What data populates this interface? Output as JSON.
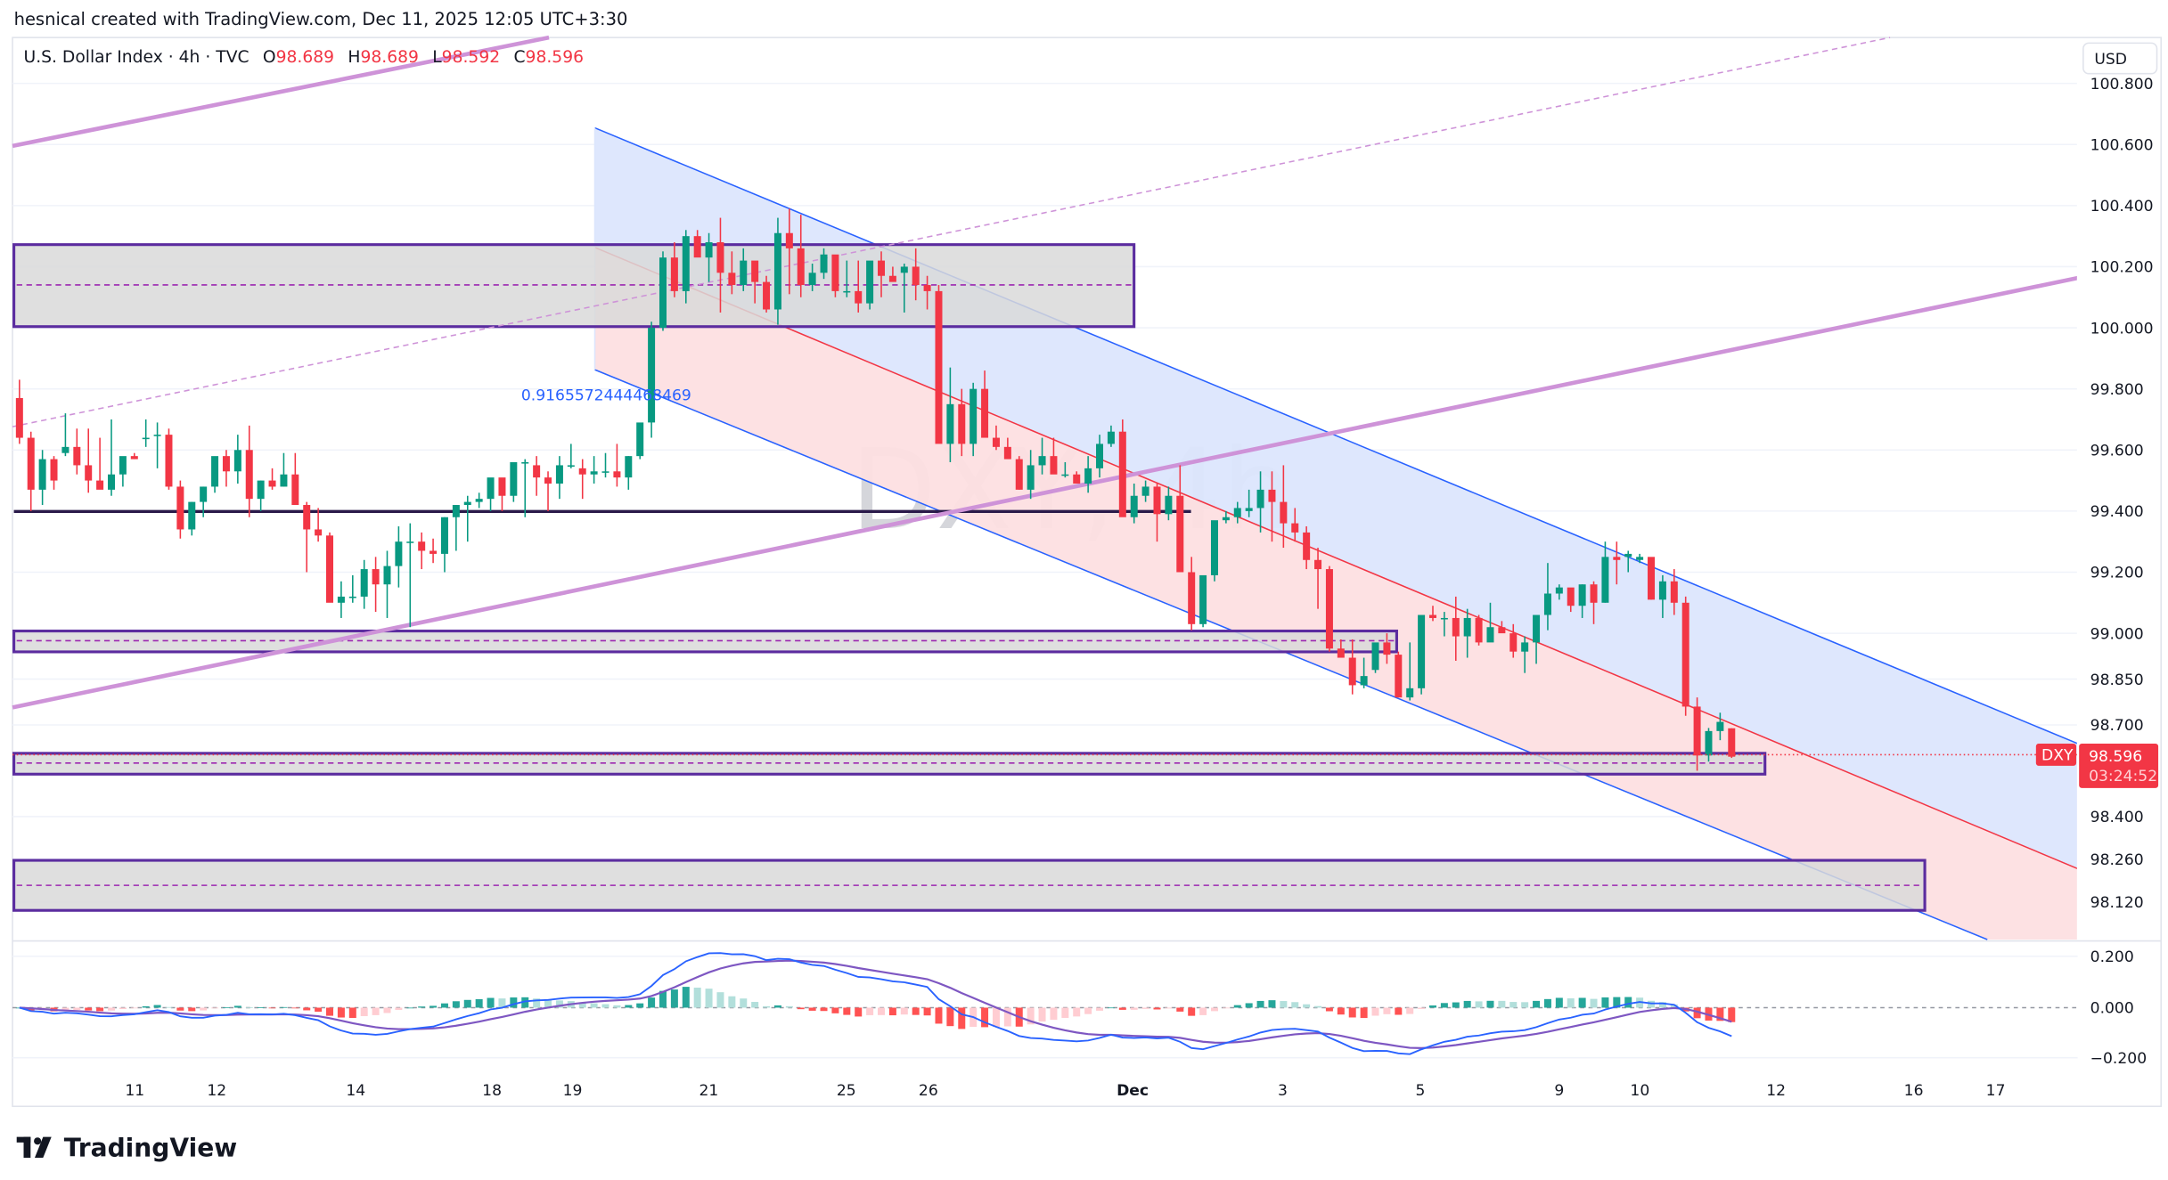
{
  "header": {
    "attribution": "hesnical created with TradingView.com, Dec 11, 2025 12:05 UTC+3:30"
  },
  "legend": {
    "symbol_name": "U.S. Dollar Index · 4h · TVC",
    "open_label": "O",
    "open": "98.689",
    "high_label": "H",
    "high": "98.689",
    "low_label": "L",
    "low": "98.592",
    "close_label": "C",
    "close": "98.596"
  },
  "watermark": "DXY, 4h",
  "currency_button": "USD",
  "last_price_tag": {
    "symbol": "DXY",
    "price": "98.596",
    "countdown": "03:24:52"
  },
  "annotation_label": "0.9165572444468469",
  "price_axis": {
    "ticks": [
      "100.800",
      "100.600",
      "100.400",
      "100.200",
      "100.000",
      "99.800",
      "99.600",
      "99.400",
      "99.200",
      "99.000",
      "98.850",
      "98.700",
      "98.400",
      "98.260",
      "98.120"
    ]
  },
  "macd_axis": {
    "ticks": [
      "0.200",
      "0.000",
      "−0.200"
    ]
  },
  "time_axis": {
    "labels": [
      {
        "text": "11",
        "x": 97
      },
      {
        "text": "12",
        "x": 156
      },
      {
        "text": "14",
        "x": 256
      },
      {
        "text": "18",
        "x": 354
      },
      {
        "text": "19",
        "x": 412
      },
      {
        "text": "21",
        "x": 510
      },
      {
        "text": "25",
        "x": 609
      },
      {
        "text": "26",
        "x": 668
      },
      {
        "text": "Dec",
        "x": 815,
        "bold": true
      },
      {
        "text": "3",
        "x": 923
      },
      {
        "text": "5",
        "x": 1022
      },
      {
        "text": "9",
        "x": 1122
      },
      {
        "text": "10",
        "x": 1180
      },
      {
        "text": "12",
        "x": 1278
      },
      {
        "text": "16",
        "x": 1377
      },
      {
        "text": "17",
        "x": 1436
      }
    ]
  },
  "branding": {
    "logo_text": "TradingView"
  },
  "colors": {
    "up": "#089981",
    "down": "#f23645",
    "zone_border": "#5b2c9f",
    "zone_fill": "#d9d9d9",
    "trendline": "#ce93d8",
    "channel_upper_fill": "#dce6fd",
    "channel_lower_fill": "#fddfe2",
    "channel_line_blue": "#2962ff",
    "channel_line_red": "#f23645",
    "macd_line": "#2962ff",
    "signal_line": "#7e57c2",
    "hist_up_strong": "#26a69a",
    "hist_up_weak": "#b2dfdb",
    "hist_down_strong": "#ff5252",
    "hist_down_weak": "#ffcdd2"
  },
  "chart_data": {
    "type": "candlestick",
    "title": "U.S. Dollar Index · 4h · TVC",
    "symbol": "DXY",
    "timeframe": "4h",
    "ylabel": "USD",
    "ylim": [
      98.05,
      100.85
    ],
    "x_tick_labels": [
      "11",
      "12",
      "14",
      "18",
      "19",
      "21",
      "25",
      "26",
      "Dec",
      "3",
      "5",
      "9",
      "10",
      "12",
      "16",
      "17"
    ],
    "last": {
      "open": 98.689,
      "high": 98.689,
      "low": 98.592,
      "close": 98.596
    },
    "candles": [
      [
        99.77,
        99.83,
        99.62,
        99.64
      ],
      [
        99.64,
        99.66,
        99.4,
        99.47
      ],
      [
        99.47,
        99.6,
        99.42,
        99.57
      ],
      [
        99.57,
        99.58,
        99.47,
        99.5
      ],
      [
        99.59,
        99.72,
        99.58,
        99.61
      ],
      [
        99.61,
        99.67,
        99.52,
        99.55
      ],
      [
        99.55,
        99.67,
        99.46,
        99.5
      ],
      [
        99.5,
        99.64,
        99.49,
        99.47
      ],
      [
        99.47,
        99.7,
        99.45,
        99.52
      ],
      [
        99.52,
        99.57,
        99.48,
        99.58
      ],
      [
        99.58,
        99.59,
        99.57,
        99.57
      ],
      [
        99.64,
        99.7,
        99.61,
        99.64
      ],
      [
        99.65,
        99.69,
        99.54,
        99.65
      ],
      [
        99.65,
        99.67,
        99.47,
        99.48
      ],
      [
        99.48,
        99.5,
        99.31,
        99.34
      ],
      [
        99.34,
        99.43,
        99.32,
        99.43
      ],
      [
        99.43,
        99.48,
        99.38,
        99.48
      ],
      [
        99.48,
        99.56,
        99.46,
        99.58
      ],
      [
        99.58,
        99.6,
        99.48,
        99.53
      ],
      [
        99.53,
        99.65,
        99.49,
        99.6
      ],
      [
        99.6,
        99.68,
        99.38,
        99.44
      ],
      [
        99.44,
        99.5,
        99.4,
        99.5
      ],
      [
        99.5,
        99.54,
        99.47,
        99.48
      ],
      [
        99.48,
        99.59,
        99.48,
        99.52
      ],
      [
        99.52,
        99.59,
        99.48,
        99.42
      ],
      [
        99.42,
        99.43,
        99.2,
        99.34
      ],
      [
        99.34,
        99.41,
        99.3,
        99.32
      ],
      [
        99.32,
        99.33,
        99.12,
        99.1
      ],
      [
        99.1,
        99.17,
        99.05,
        99.12
      ],
      [
        99.12,
        99.19,
        99.1,
        99.12
      ],
      [
        99.12,
        99.24,
        99.08,
        99.21
      ],
      [
        99.21,
        99.25,
        99.07,
        99.16
      ],
      [
        99.16,
        99.27,
        99.05,
        99.22
      ],
      [
        99.22,
        99.35,
        99.15,
        99.3
      ],
      [
        99.3,
        99.36,
        99.02,
        99.3
      ],
      [
        99.3,
        99.33,
        99.21,
        99.27
      ],
      [
        99.27,
        99.31,
        99.23,
        99.26
      ],
      [
        99.26,
        99.38,
        99.2,
        99.38
      ],
      [
        99.38,
        99.42,
        99.27,
        99.42
      ],
      [
        99.42,
        99.45,
        99.3,
        99.43
      ],
      [
        99.43,
        99.46,
        99.41,
        99.44
      ],
      [
        99.44,
        99.48,
        99.4,
        99.51
      ],
      [
        99.51,
        99.5,
        99.4,
        99.45
      ],
      [
        99.45,
        99.56,
        99.43,
        99.56
      ],
      [
        99.56,
        99.57,
        99.38,
        99.56
      ],
      [
        99.55,
        99.58,
        99.45,
        99.51
      ],
      [
        99.51,
        99.53,
        99.4,
        99.49
      ],
      [
        99.49,
        99.58,
        99.44,
        99.55
      ],
      [
        99.55,
        99.62,
        99.54,
        99.55
      ],
      [
        99.54,
        99.57,
        99.44,
        99.52
      ],
      [
        99.52,
        99.58,
        99.49,
        99.53
      ],
      [
        99.53,
        99.59,
        99.51,
        99.53
      ],
      [
        99.53,
        99.62,
        99.48,
        99.51
      ],
      [
        99.51,
        99.58,
        99.47,
        99.58
      ],
      [
        99.58,
        99.64,
        99.57,
        99.69
      ],
      [
        99.69,
        100.02,
        99.64,
        100.0
      ],
      [
        100.0,
        100.25,
        99.99,
        100.23
      ],
      [
        100.23,
        100.28,
        100.1,
        100.12
      ],
      [
        100.12,
        100.32,
        100.08,
        100.3
      ],
      [
        100.3,
        100.32,
        100.25,
        100.23
      ],
      [
        100.23,
        100.31,
        100.15,
        100.28
      ],
      [
        100.28,
        100.36,
        100.05,
        100.18
      ],
      [
        100.18,
        100.25,
        100.11,
        100.14
      ],
      [
        100.14,
        100.26,
        100.12,
        100.22
      ],
      [
        100.22,
        100.19,
        100.08,
        100.15
      ],
      [
        100.15,
        100.17,
        100.05,
        100.06
      ],
      [
        100.06,
        100.36,
        100.01,
        100.31
      ],
      [
        100.31,
        100.39,
        100.11,
        100.26
      ],
      [
        100.26,
        100.37,
        100.1,
        100.14
      ],
      [
        100.14,
        100.21,
        100.12,
        100.18
      ],
      [
        100.18,
        100.26,
        100.16,
        100.24
      ],
      [
        100.24,
        100.22,
        100.1,
        100.12
      ],
      [
        100.12,
        100.22,
        100.1,
        100.12
      ],
      [
        100.12,
        100.22,
        100.05,
        100.08
      ],
      [
        100.08,
        100.18,
        100.06,
        100.22
      ],
      [
        100.22,
        100.25,
        100.1,
        100.17
      ],
      [
        100.17,
        100.2,
        100.16,
        100.15
      ],
      [
        100.18,
        100.21,
        100.05,
        100.2
      ],
      [
        100.2,
        100.26,
        100.09,
        100.14
      ],
      [
        100.14,
        100.17,
        100.06,
        100.12
      ],
      [
        100.12,
        100.14,
        99.79,
        99.62
      ],
      [
        99.62,
        99.87,
        99.56,
        99.75
      ],
      [
        99.75,
        99.8,
        99.58,
        99.62
      ],
      [
        99.62,
        99.82,
        99.58,
        99.8
      ],
      [
        99.8,
        99.86,
        99.67,
        99.64
      ],
      [
        99.64,
        99.68,
        99.6,
        99.61
      ],
      [
        99.61,
        99.64,
        99.59,
        99.57
      ],
      [
        99.57,
        99.58,
        99.47,
        99.47
      ],
      [
        99.47,
        99.6,
        99.44,
        99.55
      ],
      [
        99.55,
        99.64,
        99.52,
        99.58
      ],
      [
        99.58,
        99.64,
        99.53,
        99.52
      ],
      [
        99.52,
        99.56,
        99.51,
        99.52
      ],
      [
        99.52,
        99.53,
        99.49,
        99.49
      ],
      [
        99.49,
        99.58,
        99.46,
        99.54
      ],
      [
        99.54,
        99.65,
        99.51,
        99.62
      ],
      [
        99.62,
        99.68,
        99.61,
        99.66
      ],
      [
        99.66,
        99.7,
        99.4,
        99.38
      ],
      [
        99.38,
        99.49,
        99.36,
        99.45
      ],
      [
        99.45,
        99.5,
        99.43,
        99.48
      ],
      [
        99.48,
        99.49,
        99.3,
        99.39
      ],
      [
        99.39,
        99.48,
        99.37,
        99.45
      ],
      [
        99.45,
        99.55,
        99.26,
        99.2
      ],
      [
        99.2,
        99.25,
        99.01,
        99.03
      ],
      [
        99.03,
        99.17,
        99.02,
        99.19
      ],
      [
        99.19,
        99.34,
        99.17,
        99.37
      ],
      [
        99.37,
        99.4,
        99.36,
        99.38
      ],
      [
        99.38,
        99.43,
        99.36,
        99.41
      ],
      [
        99.4,
        99.47,
        99.38,
        99.41
      ],
      [
        99.41,
        99.53,
        99.33,
        99.47
      ],
      [
        99.47,
        99.53,
        99.3,
        99.43
      ],
      [
        99.43,
        99.55,
        99.28,
        99.36
      ],
      [
        99.36,
        99.41,
        99.3,
        99.33
      ],
      [
        99.33,
        99.35,
        99.21,
        99.24
      ],
      [
        99.24,
        99.28,
        99.08,
        99.21
      ],
      [
        99.21,
        99.22,
        98.94,
        98.95
      ],
      [
        98.95,
        98.98,
        98.93,
        98.92
      ],
      [
        98.92,
        98.98,
        98.8,
        98.83
      ],
      [
        98.83,
        98.92,
        98.82,
        98.86
      ],
      [
        98.88,
        98.96,
        98.87,
        98.97
      ],
      [
        98.97,
        99.0,
        98.9,
        98.93
      ],
      [
        98.93,
        98.94,
        98.79,
        98.79
      ],
      [
        98.79,
        98.97,
        98.78,
        98.82
      ],
      [
        98.82,
        98.98,
        98.8,
        99.06
      ],
      [
        99.06,
        99.09,
        99.04,
        99.05
      ],
      [
        99.05,
        99.07,
        98.99,
        99.05
      ],
      [
        99.05,
        99.12,
        98.91,
        98.99
      ],
      [
        98.99,
        99.08,
        98.92,
        99.05
      ],
      [
        99.05,
        99.06,
        98.96,
        98.97
      ],
      [
        98.97,
        99.1,
        98.98,
        99.02
      ],
      [
        99.02,
        99.04,
        99.01,
        99.0
      ],
      [
        99.0,
        99.03,
        98.92,
        98.94
      ],
      [
        98.94,
        98.99,
        98.87,
        98.97
      ],
      [
        98.97,
        99.02,
        98.9,
        99.06
      ],
      [
        99.06,
        99.23,
        99.01,
        99.13
      ],
      [
        99.13,
        99.16,
        99.11,
        99.15
      ],
      [
        99.15,
        99.13,
        99.07,
        99.09
      ],
      [
        99.09,
        99.16,
        99.05,
        99.16
      ],
      [
        99.16,
        99.17,
        99.03,
        99.1
      ],
      [
        99.1,
        99.3,
        99.1,
        99.25
      ],
      [
        99.25,
        99.3,
        99.16,
        99.24
      ],
      [
        99.25,
        99.27,
        99.2,
        99.26
      ],
      [
        99.24,
        99.26,
        99.23,
        99.25
      ],
      [
        99.25,
        99.23,
        99.11,
        99.11
      ],
      [
        99.11,
        99.19,
        99.05,
        99.17
      ],
      [
        99.17,
        99.21,
        99.06,
        99.1
      ],
      [
        99.1,
        99.12,
        98.73,
        98.76
      ],
      [
        98.76,
        98.79,
        98.55,
        98.6
      ],
      [
        98.6,
        98.69,
        98.58,
        98.68
      ],
      [
        98.68,
        98.74,
        98.65,
        98.71
      ],
      [
        98.689,
        98.689,
        98.592,
        98.596
      ]
    ],
    "macd": {
      "histogram_range": [
        -0.2,
        0.2
      ],
      "macd_range_hint": "macd (blue) peaks ~0.21 near Nov 20-21, troughs ~-0.17 near Dec 4, ends ~-0.10",
      "signal_range_hint": "signal (purple) peaks ~0.20 near Nov 21-22, troughs ~-0.16 near Dec 4, ends ~-0.05"
    },
    "drawings": [
      {
        "type": "rectangle_zone",
        "top": 100.27,
        "bottom": 100.0,
        "mid_dashed": 100.13
      },
      {
        "type": "horizontal_line",
        "price": 99.39
      },
      {
        "type": "rectangle_zone",
        "top": 99.0,
        "bottom": 98.93,
        "mid_dashed": 98.96
      },
      {
        "type": "rectangle_zone",
        "top": 98.61,
        "bottom": 98.54,
        "mid_dashed": 98.57
      },
      {
        "type": "rectangle_zone",
        "top": 98.26,
        "bottom": 98.09,
        "mid_dashed": 98.17
      },
      {
        "type": "parallel_channel_descending",
        "upper_blue": "from 100.65 (Nov 19) down",
        "mid_red": "from 100.25 down",
        "lower_blue": "from 99.85 down"
      },
      {
        "type": "trendline_ascending",
        "style": "solid",
        "color": "#ce93d8"
      },
      {
        "type": "trendline_ascending",
        "style": "dashed",
        "color": "#ce93d8"
      }
    ]
  }
}
